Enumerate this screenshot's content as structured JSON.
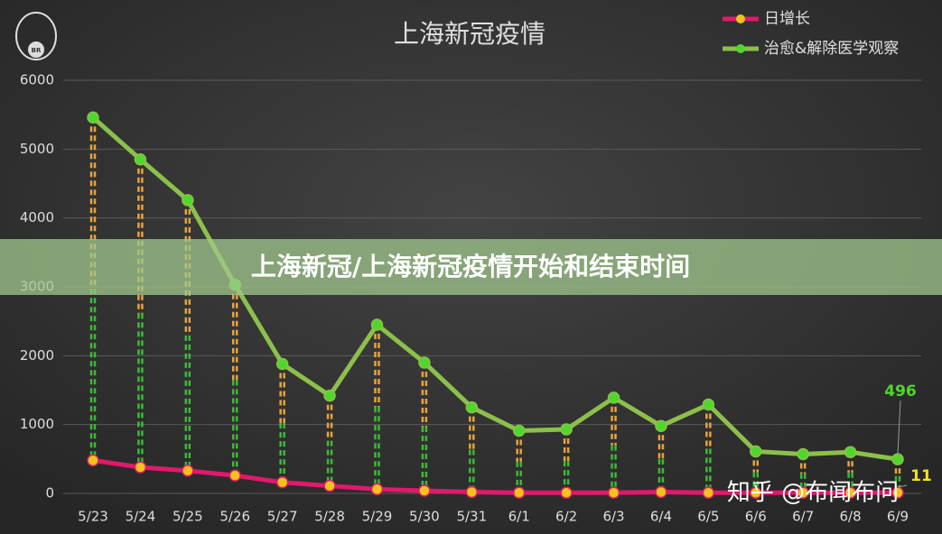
{
  "chart_data": {
    "type": "line",
    "title": "上海新冠疫情",
    "categories": [
      "5/23",
      "5/24",
      "5/25",
      "5/26",
      "5/27",
      "5/28",
      "5/29",
      "5/30",
      "5/31",
      "6/1",
      "6/2",
      "6/3",
      "6/4",
      "6/5",
      "6/6",
      "6/7",
      "6/8",
      "6/9"
    ],
    "series": [
      {
        "name": "日增长",
        "color": "#e0196d",
        "marker_color": "#f4c21b",
        "drop_color": "#e8a33a",
        "show_last_label": true,
        "values": [
          480,
          380,
          330,
          260,
          160,
          110,
          60,
          40,
          20,
          10,
          10,
          10,
          20,
          10,
          10,
          10,
          10,
          11
        ]
      },
      {
        "name": "治愈&解除医学观察",
        "color": "#8cc04b",
        "marker_color": "#4fd72c",
        "drop_color": "#3fd23a",
        "show_last_label": true,
        "values": [
          5460,
          4850,
          4260,
          3030,
          1880,
          1420,
          2450,
          1900,
          1250,
          910,
          930,
          1390,
          980,
          1290,
          610,
          570,
          600,
          496
        ]
      }
    ],
    "ylim": [
      0,
      6000
    ],
    "yticks": [
      0,
      1000,
      2000,
      3000,
      4000,
      5000,
      6000
    ],
    "grid": true,
    "legend": "top-right"
  },
  "banner": "上海新冠/上海新冠疫情开始和结束时间",
  "watermark": "知乎 @布闻布问",
  "logo_text": "BR"
}
